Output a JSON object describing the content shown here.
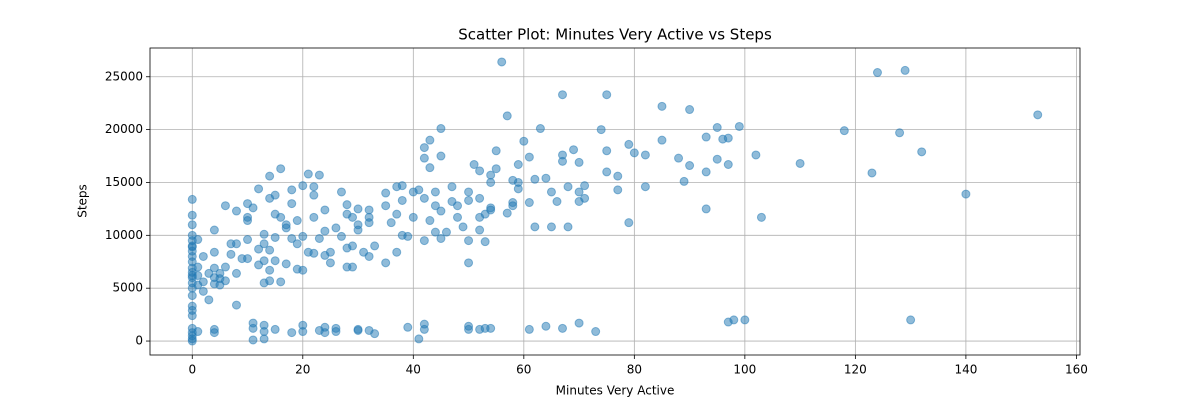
{
  "chart_data": {
    "type": "scatter",
    "title": "Scatter Plot: Minutes Very Active vs Steps",
    "x_label": "Minutes Very Active",
    "y_label": "Steps",
    "color": "#1f77b4",
    "marker_alpha": 0.5,
    "grid": true,
    "xlim": [
      -7.65,
      160.65
    ],
    "ylim": [
      -1320,
      27720
    ],
    "xticks": [
      0,
      20,
      40,
      60,
      80,
      100,
      120,
      140,
      160
    ],
    "yticks": [
      0,
      5000,
      10000,
      15000,
      20000,
      25000
    ],
    "x": [
      56,
      124,
      129,
      67,
      75,
      85,
      90,
      57,
      153,
      99,
      95,
      63,
      45,
      74,
      118,
      128,
      93,
      96,
      97,
      60,
      85,
      79,
      43,
      42,
      132,
      80,
      69,
      75,
      55,
      82,
      67,
      102,
      61,
      45,
      42,
      88,
      95,
      110,
      97,
      51,
      59,
      67,
      70,
      90,
      16,
      43,
      55,
      75,
      93,
      123,
      14,
      21,
      23,
      54,
      52,
      77,
      64,
      62,
      58,
      59,
      89,
      54,
      38,
      37,
      71,
      20,
      47,
      68,
      82,
      12,
      18,
      22,
      77,
      70,
      41,
      44,
      50,
      59,
      22,
      35,
      40,
      65,
      27,
      15,
      14,
      0,
      140,
      71,
      52,
      42,
      66,
      70,
      47,
      50,
      58,
      61,
      38,
      18,
      10,
      28,
      35,
      6,
      44,
      48,
      54,
      11,
      30,
      54,
      58,
      8,
      24,
      32,
      45,
      93,
      15,
      28,
      37,
      53,
      57,
      16,
      29,
      32,
      0,
      10,
      22,
      40,
      103,
      48,
      52,
      17,
      79,
      10,
      19,
      30,
      43,
      32,
      62,
      65,
      68,
      49,
      36,
      0,
      17,
      24,
      26,
      30,
      38,
      44,
      46,
      52,
      4,
      13,
      18,
      23,
      27,
      39,
      42,
      45,
      50,
      53,
      1,
      10,
      15,
      7,
      8,
      13,
      19,
      20,
      28,
      29,
      33,
      0,
      12,
      14,
      21,
      25,
      22,
      24,
      31,
      37,
      32,
      7,
      4,
      2,
      9,
      10,
      13,
      15,
      25,
      35,
      50,
      12,
      17,
      1,
      6,
      28,
      29,
      19,
      20,
      14,
      4,
      0,
      3,
      5,
      8,
      1,
      4,
      0,
      5,
      6,
      14,
      13,
      16,
      2,
      4,
      1,
      5,
      2,
      0,
      3,
      8,
      0,
      0,
      0,
      0,
      0,
      0,
      0,
      0,
      0,
      0,
      0,
      0,
      0,
      11,
      11,
      13,
      13,
      4,
      4,
      1,
      15,
      18,
      20,
      20,
      23,
      24,
      24,
      26,
      26,
      30,
      30,
      32,
      33,
      39,
      42,
      42,
      50,
      50,
      52,
      53,
      54,
      61,
      64,
      67,
      70,
      73,
      97,
      98,
      100,
      130,
      11,
      13,
      41,
      0,
      0,
      0,
      0,
      0
    ],
    "values": [
      26400,
      25400,
      25600,
      23300,
      23300,
      22200,
      21900,
      21300,
      21400,
      20300,
      20200,
      20100,
      20100,
      20000,
      19900,
      19700,
      19300,
      19100,
      19200,
      18900,
      19000,
      18600,
      19000,
      18300,
      17900,
      17800,
      18100,
      18000,
      18000,
      17600,
      17600,
      17600,
      17400,
      17500,
      17300,
      17300,
      17200,
      16800,
      16700,
      16700,
      16700,
      17000,
      16900,
      16600,
      16300,
      16400,
      16300,
      16000,
      16000,
      15900,
      15600,
      15800,
      15700,
      15700,
      16100,
      15600,
      15400,
      15300,
      15200,
      15000,
      15100,
      15000,
      14700,
      14600,
      14700,
      14700,
      14600,
      14600,
      14600,
      14400,
      14300,
      14600,
      14300,
      14100,
      14300,
      14100,
      14100,
      14400,
      13800,
      14000,
      14100,
      14100,
      14100,
      13800,
      13500,
      13400,
      13900,
      13500,
      13500,
      13500,
      13200,
      13200,
      13200,
      13300,
      13100,
      13100,
      13300,
      13000,
      13000,
      12900,
      12800,
      12800,
      12800,
      12800,
      12600,
      12600,
      12500,
      12400,
      12800,
      12300,
      12400,
      12400,
      12300,
      12500,
      12000,
      12000,
      12000,
      12000,
      12100,
      11700,
      11700,
      11700,
      11900,
      11700,
      11700,
      11700,
      11700,
      11700,
      11700,
      11000,
      11200,
      11400,
      11400,
      11000,
      11400,
      11200,
      10800,
      10800,
      10800,
      10800,
      11200,
      11000,
      10700,
      10400,
      10700,
      10500,
      10000,
      10300,
      10300,
      10500,
      10500,
      10100,
      9700,
      9700,
      9900,
      9900,
      9500,
      9700,
      9500,
      9400,
      9600,
      9600,
      9800,
      9200,
      9200,
      9200,
      9200,
      9900,
      8800,
      9000,
      9000,
      8900,
      8700,
      8600,
      8400,
      8400,
      8300,
      8100,
      8400,
      8400,
      8000,
      8200,
      8400,
      8000,
      7800,
      7800,
      7600,
      7600,
      7400,
      7400,
      7400,
      7200,
      7300,
      7000,
      7000,
      7000,
      7000,
      6800,
      6700,
      6700,
      6900,
      6900,
      6400,
      6400,
      6400,
      6200,
      6000,
      6200,
      5900,
      5700,
      5700,
      5500,
      5600,
      5600,
      5400,
      5300,
      5300,
      4700,
      4300,
      3900,
      3400,
      3300,
      2400,
      2900,
      5000,
      5500,
      6000,
      6500,
      7500,
      8000,
      8500,
      9000,
      9500,
      10000,
      1700,
      1200,
      1500,
      900,
      1100,
      800,
      900,
      1100,
      800,
      1500,
      900,
      1000,
      1300,
      800,
      1200,
      900,
      1000,
      1100,
      1000,
      700,
      1300,
      1600,
      1100,
      1400,
      1100,
      1100,
      1200,
      1200,
      1100,
      1400,
      1200,
      1700,
      900,
      1800,
      2000,
      2000,
      2000,
      100,
      200,
      200,
      500,
      200,
      0,
      800,
      1200
    ]
  }
}
